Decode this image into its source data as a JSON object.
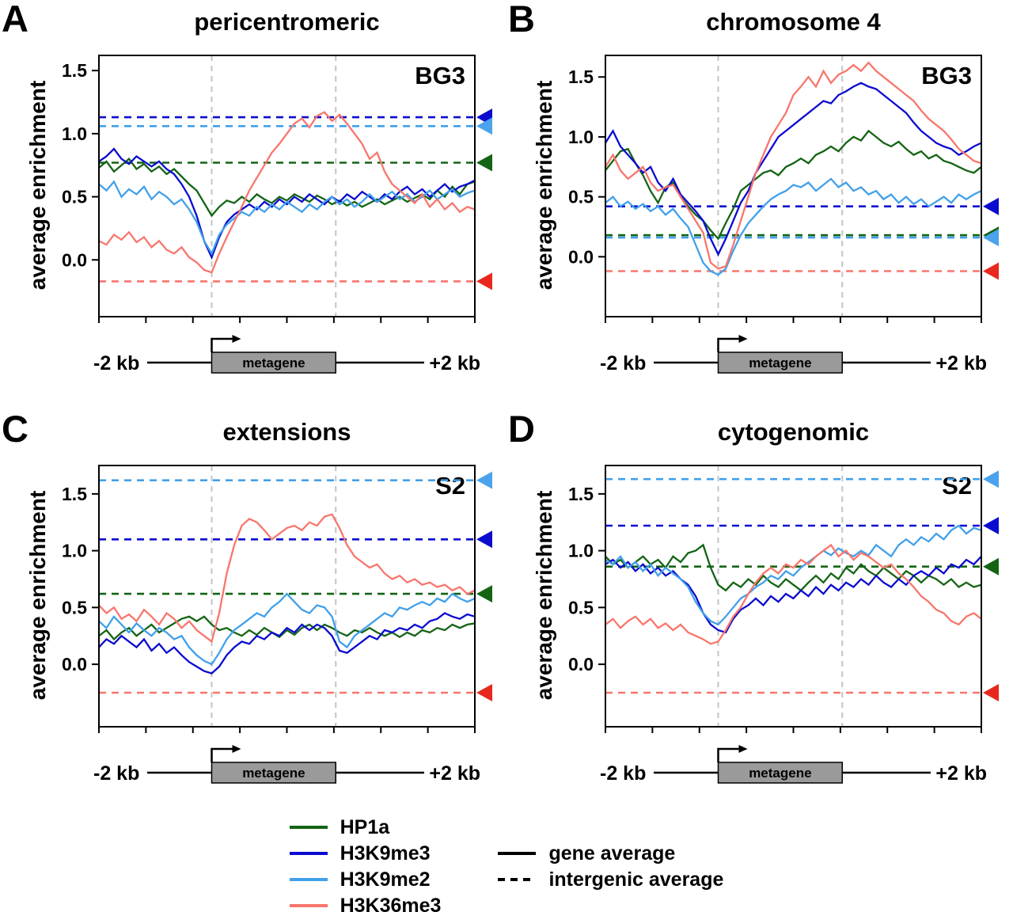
{
  "figure": {
    "ylabel": "average enrichment",
    "metagene_label": "metagene"
  },
  "style": {
    "metagene_fill": "#9a9a9a",
    "gene_boundary_color": "#c4c4c4"
  },
  "marks": [
    {
      "name": "HP1a",
      "color": "#146414",
      "arrow_color": "#146414"
    },
    {
      "name": "H3K9me3",
      "color": "#0b0bd0",
      "arrow_color": "#0b0bd0"
    },
    {
      "name": "H3K9me2",
      "color": "#41a0ea",
      "arrow_color": "#4aa3ec"
    },
    {
      "name": "H3K36me3",
      "color": "#f8766d",
      "arrow_color": "#e8281e"
    }
  ],
  "legend": {
    "entries": [
      {
        "label": "HP1a",
        "color": "#146414"
      },
      {
        "label": "H3K9me3",
        "color": "#0b0bd0"
      },
      {
        "label": "H3K9me2",
        "color": "#41a0ea"
      },
      {
        "label": "H3K36me3",
        "color": "#f8766d"
      }
    ],
    "line_types": [
      {
        "label": "gene average",
        "style": "solid"
      },
      {
        "label": "intergenic average",
        "style": "dashed"
      }
    ]
  },
  "chart_data": [
    {
      "type": "line",
      "letter": "A",
      "title": "pericentromeric",
      "cell_label": "BG3",
      "x_left_label": "-2 kb",
      "x_right_label": "+2 kb",
      "ylim": [
        -0.45,
        1.62
      ],
      "yticks": [
        0.0,
        0.5,
        1.0,
        1.5
      ],
      "gene_start_frac": 0.3,
      "gene_end_frac": 0.63,
      "series": [
        {
          "name": "HP1a",
          "intergenic_average": 0.77,
          "gene_average": [
            0.73,
            0.78,
            0.7,
            0.75,
            0.8,
            0.72,
            0.76,
            0.7,
            0.74,
            0.68,
            0.72,
            0.66,
            0.6,
            0.55,
            0.45,
            0.35,
            0.42,
            0.47,
            0.45,
            0.5,
            0.46,
            0.52,
            0.48,
            0.45,
            0.5,
            0.47,
            0.52,
            0.49,
            0.46,
            0.51,
            0.48,
            0.44,
            0.47,
            0.43,
            0.46,
            0.42,
            0.45,
            0.48,
            0.44,
            0.47,
            0.5,
            0.46,
            0.49,
            0.52,
            0.48,
            0.55,
            0.5,
            0.58,
            0.52,
            0.6,
            0.62
          ]
        },
        {
          "name": "H3K9me3",
          "intergenic_average": 1.13,
          "gene_average": [
            0.78,
            0.82,
            0.88,
            0.8,
            0.76,
            0.82,
            0.78,
            0.74,
            0.78,
            0.72,
            0.68,
            0.6,
            0.5,
            0.35,
            0.15,
            0.02,
            0.18,
            0.3,
            0.36,
            0.4,
            0.44,
            0.4,
            0.46,
            0.42,
            0.48,
            0.44,
            0.5,
            0.46,
            0.52,
            0.48,
            0.44,
            0.5,
            0.46,
            0.52,
            0.48,
            0.54,
            0.5,
            0.46,
            0.52,
            0.48,
            0.54,
            0.58,
            0.52,
            0.56,
            0.5,
            0.55,
            0.6,
            0.54,
            0.58,
            0.6,
            0.63
          ]
        },
        {
          "name": "H3K9me2",
          "intergenic_average": 1.06,
          "gene_average": [
            0.6,
            0.55,
            0.62,
            0.5,
            0.56,
            0.52,
            0.58,
            0.48,
            0.54,
            0.5,
            0.44,
            0.48,
            0.4,
            0.3,
            0.15,
            0.05,
            0.2,
            0.28,
            0.33,
            0.38,
            0.35,
            0.42,
            0.38,
            0.44,
            0.4,
            0.46,
            0.42,
            0.38,
            0.44,
            0.4,
            0.46,
            0.5,
            0.44,
            0.48,
            0.42,
            0.46,
            0.52,
            0.46,
            0.5,
            0.54,
            0.48,
            0.52,
            0.46,
            0.5,
            0.55,
            0.48,
            0.52,
            0.56,
            0.5,
            0.53,
            0.55
          ]
        },
        {
          "name": "H3K36me3",
          "intergenic_average": -0.17,
          "gene_average": [
            0.15,
            0.12,
            0.2,
            0.16,
            0.22,
            0.14,
            0.18,
            0.1,
            0.15,
            0.08,
            0.05,
            0.1,
            0.02,
            -0.02,
            -0.08,
            -0.1,
            0.05,
            0.18,
            0.3,
            0.42,
            0.55,
            0.65,
            0.75,
            0.85,
            0.92,
            1.0,
            1.08,
            1.12,
            1.05,
            1.14,
            1.17,
            1.1,
            1.15,
            1.08,
            1.0,
            0.92,
            0.8,
            0.85,
            0.7,
            0.6,
            0.55,
            0.5,
            0.45,
            0.52,
            0.42,
            0.48,
            0.4,
            0.45,
            0.38,
            0.42,
            0.4
          ]
        }
      ]
    },
    {
      "type": "line",
      "letter": "B",
      "title": "chromosome 4",
      "cell_label": "BG3",
      "x_left_label": "-2 kb",
      "x_right_label": "+2 kb",
      "ylim": [
        -0.5,
        1.68
      ],
      "yticks": [
        0.0,
        0.5,
        1.0,
        1.5
      ],
      "gene_start_frac": 0.3,
      "gene_end_frac": 0.63,
      "series": [
        {
          "name": "HP1a",
          "intergenic_average": 0.18,
          "gene_average": [
            0.72,
            0.8,
            0.88,
            0.9,
            0.78,
            0.68,
            0.55,
            0.45,
            0.58,
            0.62,
            0.5,
            0.42,
            0.35,
            0.3,
            0.22,
            0.15,
            0.28,
            0.4,
            0.55,
            0.6,
            0.65,
            0.7,
            0.72,
            0.68,
            0.75,
            0.78,
            0.82,
            0.78,
            0.85,
            0.88,
            0.92,
            0.88,
            0.95,
            1.0,
            0.97,
            1.05,
            1.0,
            0.95,
            0.92,
            0.96,
            0.9,
            0.85,
            0.88,
            0.82,
            0.85,
            0.8,
            0.78,
            0.75,
            0.72,
            0.7,
            0.75
          ]
        },
        {
          "name": "H3K9me3",
          "intergenic_average": 0.42,
          "gene_average": [
            0.95,
            1.05,
            0.92,
            0.85,
            0.78,
            0.7,
            0.75,
            0.62,
            0.55,
            0.65,
            0.52,
            0.45,
            0.38,
            0.3,
            0.15,
            0.02,
            0.15,
            0.3,
            0.45,
            0.55,
            0.7,
            0.8,
            0.9,
            1.0,
            1.05,
            1.1,
            1.15,
            1.2,
            1.25,
            1.3,
            1.28,
            1.35,
            1.38,
            1.42,
            1.45,
            1.42,
            1.4,
            1.35,
            1.3,
            1.25,
            1.2,
            1.12,
            1.05,
            1.0,
            0.95,
            0.92,
            0.9,
            0.85,
            0.88,
            0.92,
            0.95
          ]
        },
        {
          "name": "H3K9me2",
          "intergenic_average": 0.16,
          "gene_average": [
            0.45,
            0.5,
            0.42,
            0.46,
            0.4,
            0.44,
            0.38,
            0.42,
            0.35,
            0.4,
            0.32,
            0.25,
            0.1,
            -0.05,
            -0.12,
            -0.15,
            -0.1,
            0.05,
            0.18,
            0.28,
            0.35,
            0.42,
            0.48,
            0.52,
            0.55,
            0.6,
            0.58,
            0.62,
            0.55,
            0.6,
            0.65,
            0.58,
            0.62,
            0.55,
            0.58,
            0.52,
            0.55,
            0.48,
            0.52,
            0.45,
            0.5,
            0.44,
            0.48,
            0.42,
            0.46,
            0.5,
            0.45,
            0.52,
            0.48,
            0.52,
            0.55
          ]
        },
        {
          "name": "H3K36me3",
          "intergenic_average": -0.12,
          "gene_average": [
            0.75,
            0.85,
            0.72,
            0.65,
            0.7,
            0.75,
            0.62,
            0.55,
            0.58,
            0.6,
            0.5,
            0.4,
            0.3,
            0.2,
            -0.05,
            -0.1,
            -0.08,
            0.1,
            0.3,
            0.5,
            0.7,
            0.85,
            1.0,
            1.1,
            1.2,
            1.35,
            1.42,
            1.5,
            1.42,
            1.55,
            1.45,
            1.52,
            1.55,
            1.6,
            1.55,
            1.62,
            1.55,
            1.5,
            1.45,
            1.4,
            1.35,
            1.3,
            1.22,
            1.15,
            1.1,
            1.05,
            0.98,
            0.9,
            0.85,
            0.8,
            0.78
          ]
        }
      ]
    },
    {
      "type": "line",
      "letter": "C",
      "title": "extensions",
      "cell_label": "S2",
      "x_left_label": "-2 kb",
      "x_right_label": "+2 kb",
      "ylim": [
        -0.55,
        1.75
      ],
      "yticks": [
        0.0,
        0.5,
        1.0,
        1.5
      ],
      "gene_start_frac": 0.3,
      "gene_end_frac": 0.63,
      "series": [
        {
          "name": "HP1a",
          "intergenic_average": 0.62,
          "gene_average": [
            0.25,
            0.3,
            0.22,
            0.28,
            0.32,
            0.25,
            0.3,
            0.35,
            0.28,
            0.32,
            0.36,
            0.4,
            0.42,
            0.38,
            0.42,
            0.35,
            0.3,
            0.32,
            0.28,
            0.25,
            0.3,
            0.26,
            0.32,
            0.28,
            0.24,
            0.3,
            0.26,
            0.32,
            0.35,
            0.3,
            0.35,
            0.32,
            0.28,
            0.25,
            0.3,
            0.28,
            0.32,
            0.28,
            0.25,
            0.28,
            0.24,
            0.28,
            0.25,
            0.3,
            0.28,
            0.32,
            0.3,
            0.35,
            0.32,
            0.35,
            0.36
          ]
        },
        {
          "name": "H3K9me3",
          "intergenic_average": 1.1,
          "gene_average": [
            0.15,
            0.22,
            0.18,
            0.25,
            0.2,
            0.15,
            0.22,
            0.12,
            0.18,
            0.1,
            0.15,
            0.08,
            0.02,
            -0.02,
            -0.06,
            -0.08,
            -0.02,
            0.08,
            0.15,
            0.2,
            0.18,
            0.25,
            0.22,
            0.28,
            0.25,
            0.32,
            0.28,
            0.35,
            0.3,
            0.35,
            0.32,
            0.25,
            0.12,
            0.1,
            0.15,
            0.2,
            0.25,
            0.22,
            0.3,
            0.28,
            0.32,
            0.3,
            0.35,
            0.32,
            0.38,
            0.4,
            0.45,
            0.42,
            0.4,
            0.44,
            0.42
          ]
        },
        {
          "name": "H3K9me2",
          "intergenic_average": 1.62,
          "gene_average": [
            0.38,
            0.32,
            0.42,
            0.35,
            0.28,
            0.36,
            0.3,
            0.25,
            0.32,
            0.28,
            0.22,
            0.25,
            0.15,
            0.08,
            0.03,
            0.0,
            0.1,
            0.22,
            0.3,
            0.35,
            0.4,
            0.45,
            0.42,
            0.5,
            0.55,
            0.62,
            0.55,
            0.48,
            0.45,
            0.52,
            0.5,
            0.42,
            0.2,
            0.15,
            0.25,
            0.3,
            0.35,
            0.4,
            0.45,
            0.42,
            0.5,
            0.48,
            0.52,
            0.55,
            0.52,
            0.58,
            0.55,
            0.62,
            0.58,
            0.55,
            0.58
          ]
        },
        {
          "name": "H3K36me3",
          "intergenic_average": -0.25,
          "gene_average": [
            0.52,
            0.45,
            0.5,
            0.4,
            0.44,
            0.38,
            0.48,
            0.42,
            0.35,
            0.45,
            0.4,
            0.32,
            0.38,
            0.3,
            0.25,
            0.2,
            0.45,
            0.8,
            1.05,
            1.22,
            1.28,
            1.25,
            1.18,
            1.1,
            1.15,
            1.2,
            1.22,
            1.18,
            1.25,
            1.22,
            1.3,
            1.32,
            1.2,
            1.05,
            0.95,
            0.9,
            0.85,
            0.88,
            0.8,
            0.75,
            0.78,
            0.72,
            0.75,
            0.7,
            0.72,
            0.68,
            0.7,
            0.65,
            0.68,
            0.62,
            0.65
          ]
        }
      ]
    },
    {
      "type": "line",
      "letter": "D",
      "title": "cytogenomic",
      "cell_label": "S2",
      "x_left_label": "-2 kb",
      "x_right_label": "+2 kb",
      "ylim": [
        -0.55,
        1.75
      ],
      "yticks": [
        0.0,
        0.5,
        1.0,
        1.5
      ],
      "gene_start_frac": 0.3,
      "gene_end_frac": 0.63,
      "series": [
        {
          "name": "HP1a",
          "intergenic_average": 0.86,
          "gene_average": [
            0.95,
            0.88,
            0.92,
            0.85,
            0.9,
            0.95,
            0.88,
            0.92,
            0.85,
            0.95,
            0.9,
            0.98,
            1.0,
            1.05,
            0.85,
            0.7,
            0.65,
            0.72,
            0.68,
            0.75,
            0.7,
            0.78,
            0.72,
            0.68,
            0.75,
            0.7,
            0.65,
            0.72,
            0.78,
            0.72,
            0.8,
            0.75,
            0.85,
            0.8,
            0.88,
            0.82,
            0.78,
            0.85,
            0.8,
            0.75,
            0.82,
            0.78,
            0.72,
            0.78,
            0.75,
            0.7,
            0.75,
            0.68,
            0.72,
            0.68,
            0.7
          ]
        },
        {
          "name": "H3K9me3",
          "intergenic_average": 1.22,
          "gene_average": [
            0.88,
            0.92,
            0.85,
            0.9,
            0.82,
            0.88,
            0.8,
            0.85,
            0.78,
            0.82,
            0.75,
            0.7,
            0.6,
            0.45,
            0.35,
            0.3,
            0.28,
            0.4,
            0.48,
            0.52,
            0.58,
            0.52,
            0.6,
            0.55,
            0.62,
            0.58,
            0.65,
            0.6,
            0.68,
            0.62,
            0.7,
            0.65,
            0.72,
            0.68,
            0.75,
            0.7,
            0.78,
            0.72,
            0.68,
            0.75,
            0.7,
            0.78,
            0.82,
            0.78,
            0.85,
            0.8,
            0.88,
            0.85,
            0.92,
            0.88,
            0.95
          ]
        },
        {
          "name": "H3K9me2",
          "intergenic_average": 1.63,
          "gene_average": [
            0.92,
            0.88,
            0.95,
            0.85,
            0.9,
            0.82,
            0.88,
            0.78,
            0.85,
            0.8,
            0.75,
            0.68,
            0.55,
            0.45,
            0.38,
            0.35,
            0.42,
            0.5,
            0.58,
            0.62,
            0.68,
            0.72,
            0.78,
            0.75,
            0.82,
            0.78,
            0.85,
            0.9,
            0.95,
            1.0,
            0.96,
            1.02,
            0.98,
            0.95,
            1.0,
            0.96,
            1.05,
            1.0,
            0.95,
            1.05,
            1.1,
            1.05,
            1.12,
            1.08,
            1.15,
            1.1,
            1.18,
            1.22,
            1.15,
            1.2,
            1.18
          ]
        },
        {
          "name": "H3K36me3",
          "intergenic_average": -0.25,
          "gene_average": [
            0.35,
            0.4,
            0.32,
            0.38,
            0.42,
            0.35,
            0.4,
            0.32,
            0.36,
            0.3,
            0.35,
            0.28,
            0.25,
            0.22,
            0.18,
            0.2,
            0.3,
            0.42,
            0.5,
            0.62,
            0.72,
            0.8,
            0.85,
            0.8,
            0.88,
            0.85,
            0.92,
            0.88,
            0.95,
            1.0,
            1.05,
            0.95,
            1.0,
            0.92,
            0.98,
            0.95,
            0.9,
            0.85,
            0.88,
            0.8,
            0.75,
            0.68,
            0.6,
            0.55,
            0.48,
            0.45,
            0.38,
            0.35,
            0.42,
            0.45,
            0.4
          ]
        }
      ]
    }
  ]
}
